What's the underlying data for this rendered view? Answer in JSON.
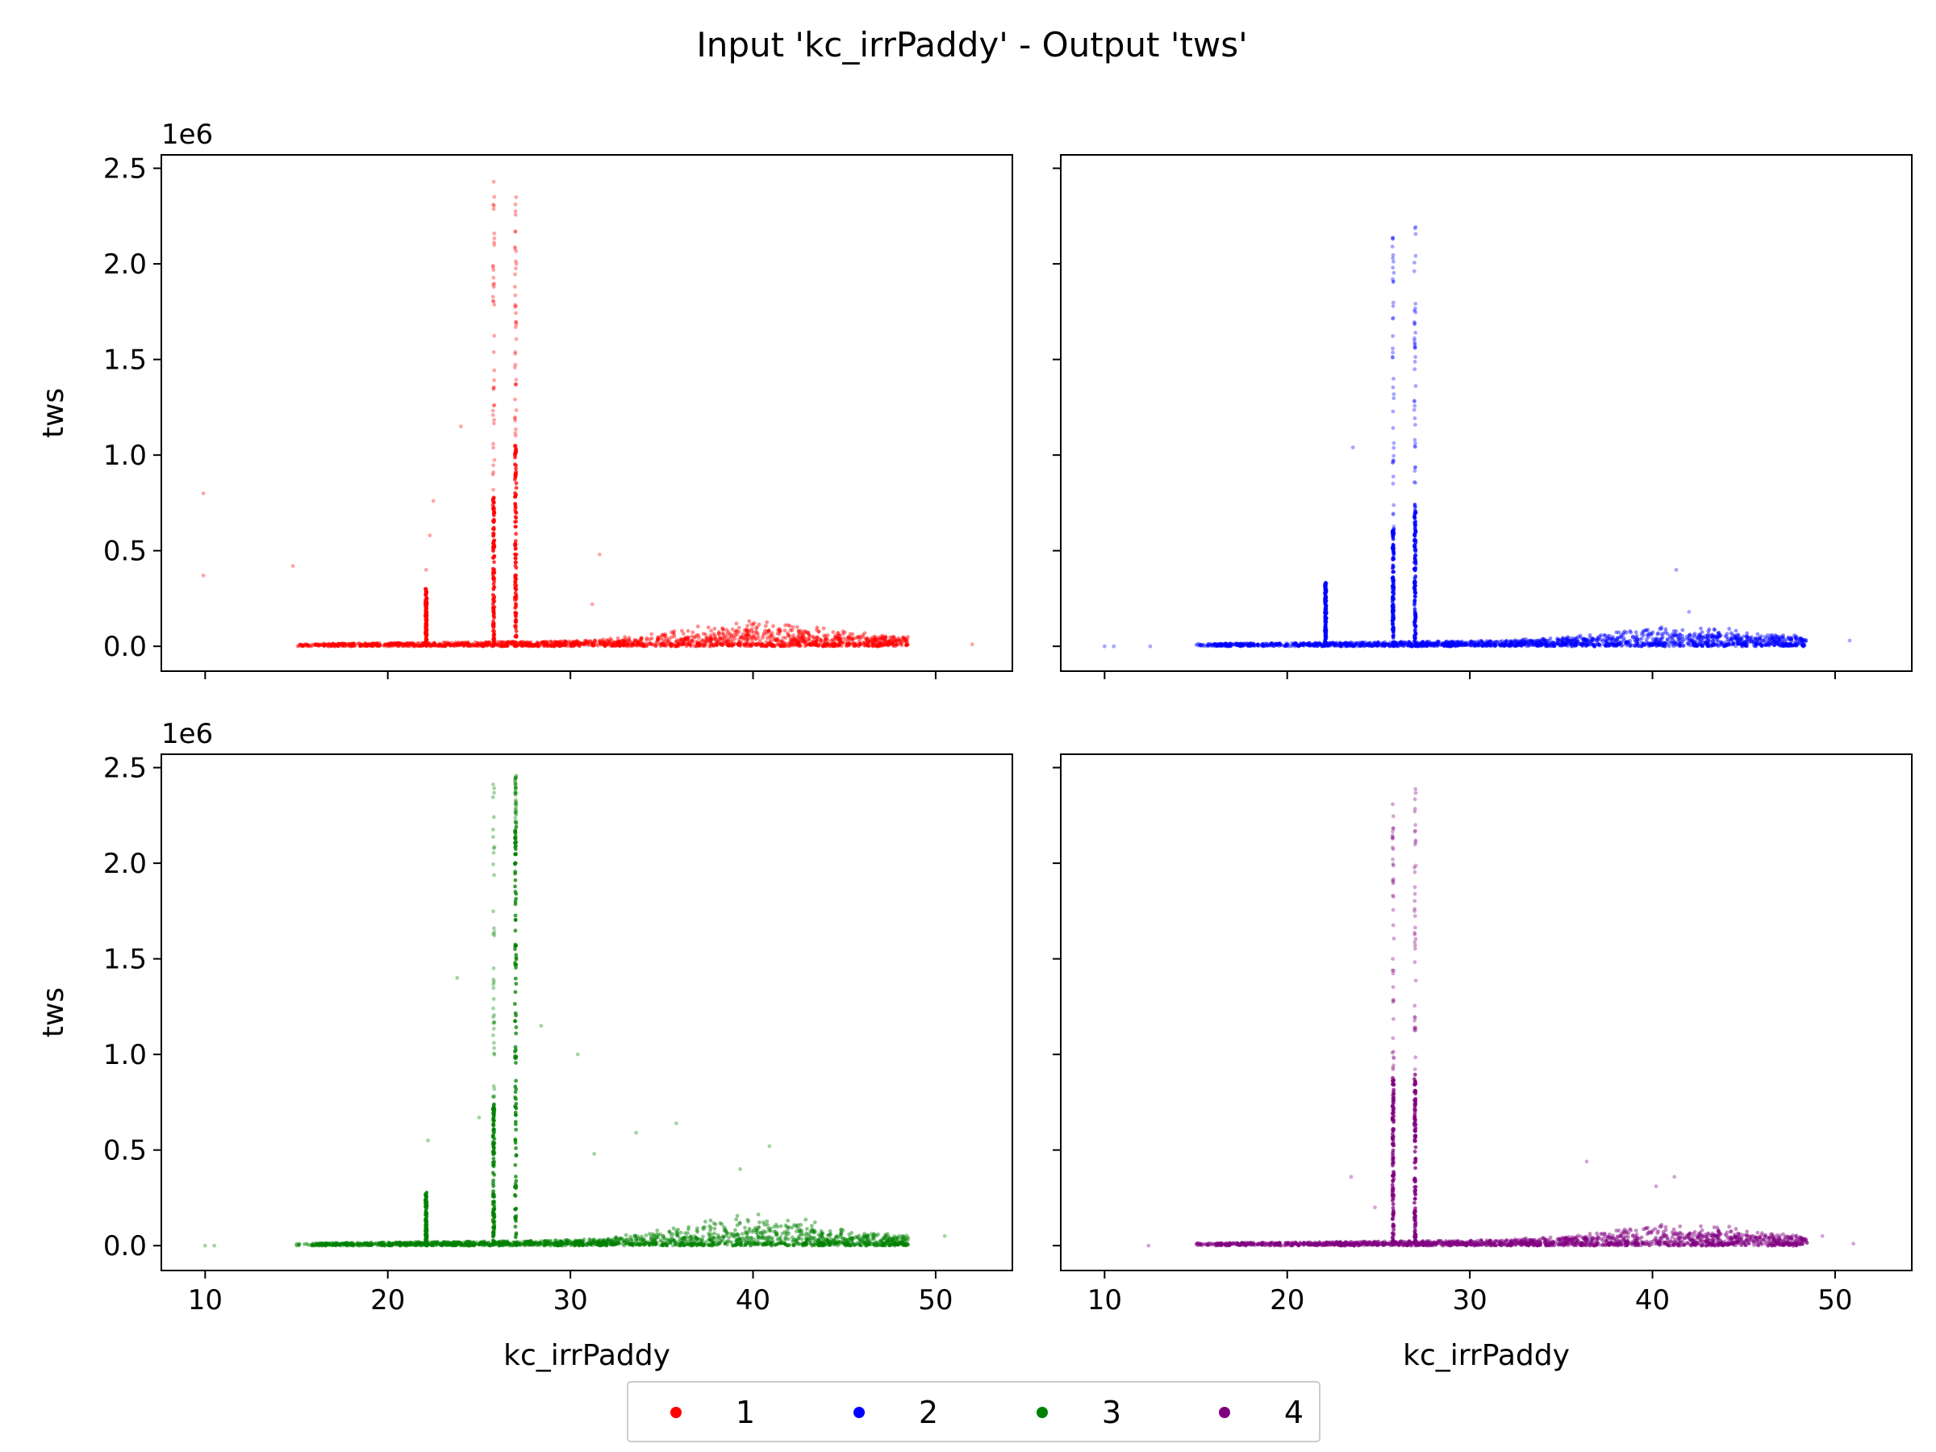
{
  "figure": {
    "title": "Input 'kc_irrPaddy' - Output 'tws'"
  },
  "chart_data": {
    "type": "scatter",
    "title": "Input 'kc_irrPaddy' - Output 'tws'",
    "xlabel": "kc_irrPaddy",
    "ylabel": "tws",
    "y_offset_label": "1e6",
    "xlim": [
      7.6,
      54.2
    ],
    "ylim": [
      -0.13,
      2.57
    ],
    "y_units": "1e6",
    "x_ticks": [
      10,
      20,
      30,
      40,
      50
    ],
    "y_ticks": [
      0.0,
      0.5,
      1.0,
      1.5,
      2.0,
      2.5
    ],
    "x_tick_labels": [
      "10",
      "20",
      "30",
      "40",
      "50"
    ],
    "y_tick_labels": [
      "0.0",
      "0.5",
      "1.0",
      "1.5",
      "2.0",
      "2.5"
    ],
    "sharex": true,
    "sharey": true,
    "grid": false,
    "legend": {
      "placement": "bottom-center",
      "entries": [
        {
          "label": "1",
          "color": "#ff0000"
        },
        {
          "label": "2",
          "color": "#0000ff"
        },
        {
          "label": "3",
          "color": "#008000"
        },
        {
          "label": "4",
          "color": "#800080"
        }
      ]
    },
    "panels": [
      {
        "series": "1",
        "color": "#ff0000",
        "bulk": {
          "x_min": 15,
          "x_max": 48.5,
          "y_base": 0.01,
          "y_hump_peak": 0.1,
          "hump_center": 40
        },
        "spikes": [
          {
            "x": 22.1,
            "y_max": 0.3
          },
          {
            "x": 25.8,
            "y_dense_max": 0.78,
            "y_max": 2.45
          },
          {
            "x": 27.0,
            "y_dense_max": 1.05,
            "y_max": 2.37
          }
        ],
        "outliers": [
          [
            9.9,
            0.8
          ],
          [
            9.9,
            0.37
          ],
          [
            14.8,
            0.42
          ],
          [
            22.5,
            0.76
          ],
          [
            22.3,
            0.58
          ],
          [
            24.0,
            1.15
          ],
          [
            31.6,
            0.48
          ],
          [
            31.2,
            0.22
          ],
          [
            22.1,
            0.4
          ],
          [
            52.0,
            0.01
          ]
        ]
      },
      {
        "series": "2",
        "color": "#0000ff",
        "bulk": {
          "x_min": 15,
          "x_max": 48.5,
          "y_base": 0.01,
          "y_hump_peak": 0.07,
          "hump_center": 41
        },
        "spikes": [
          {
            "x": 22.1,
            "y_max": 0.34
          },
          {
            "x": 25.8,
            "y_dense_max": 0.62,
            "y_max": 2.18
          },
          {
            "x": 27.0,
            "y_dense_max": 0.75,
            "y_max": 2.25
          }
        ],
        "outliers": [
          [
            23.6,
            1.04
          ],
          [
            41.3,
            0.4
          ],
          [
            42.0,
            0.18
          ],
          [
            10.0,
            0.0
          ],
          [
            10.5,
            0.0
          ],
          [
            12.5,
            0.0
          ],
          [
            50.8,
            0.03
          ]
        ]
      },
      {
        "series": "3",
        "color": "#008000",
        "bulk": {
          "x_min": 15,
          "x_max": 48.5,
          "y_base": 0.01,
          "y_hump_peak": 0.13,
          "hump_center": 40
        },
        "spikes": [
          {
            "x": 22.1,
            "y_max": 0.28
          },
          {
            "x": 25.8,
            "y_dense_max": 0.76,
            "y_max": 2.46
          },
          {
            "x": 27.0,
            "y_dense_max": 2.2,
            "y_max": 2.46
          }
        ],
        "outliers": [
          [
            23.8,
            1.4
          ],
          [
            28.4,
            1.15
          ],
          [
            30.4,
            1.0
          ],
          [
            22.2,
            0.55
          ],
          [
            33.6,
            0.59
          ],
          [
            35.8,
            0.64
          ],
          [
            40.9,
            0.52
          ],
          [
            31.3,
            0.48
          ],
          [
            25.0,
            0.67
          ],
          [
            39.3,
            0.4
          ],
          [
            50.5,
            0.05
          ],
          [
            10.0,
            0.0
          ],
          [
            10.5,
            0.0
          ]
        ]
      },
      {
        "series": "4",
        "color": "#800080",
        "bulk": {
          "x_min": 15,
          "x_max": 48.5,
          "y_base": 0.01,
          "y_hump_peak": 0.08,
          "hump_center": 41
        },
        "spikes": [
          {
            "x": 25.8,
            "y_dense_max": 0.9,
            "y_max": 2.37
          },
          {
            "x": 27.0,
            "y_dense_max": 0.9,
            "y_max": 2.4
          }
        ],
        "outliers": [
          [
            36.4,
            0.44
          ],
          [
            41.2,
            0.36
          ],
          [
            40.2,
            0.31
          ],
          [
            23.5,
            0.36
          ],
          [
            24.8,
            0.2
          ],
          [
            12.4,
            0.0
          ],
          [
            51.0,
            0.01
          ],
          [
            49.3,
            0.05
          ]
        ]
      }
    ]
  }
}
